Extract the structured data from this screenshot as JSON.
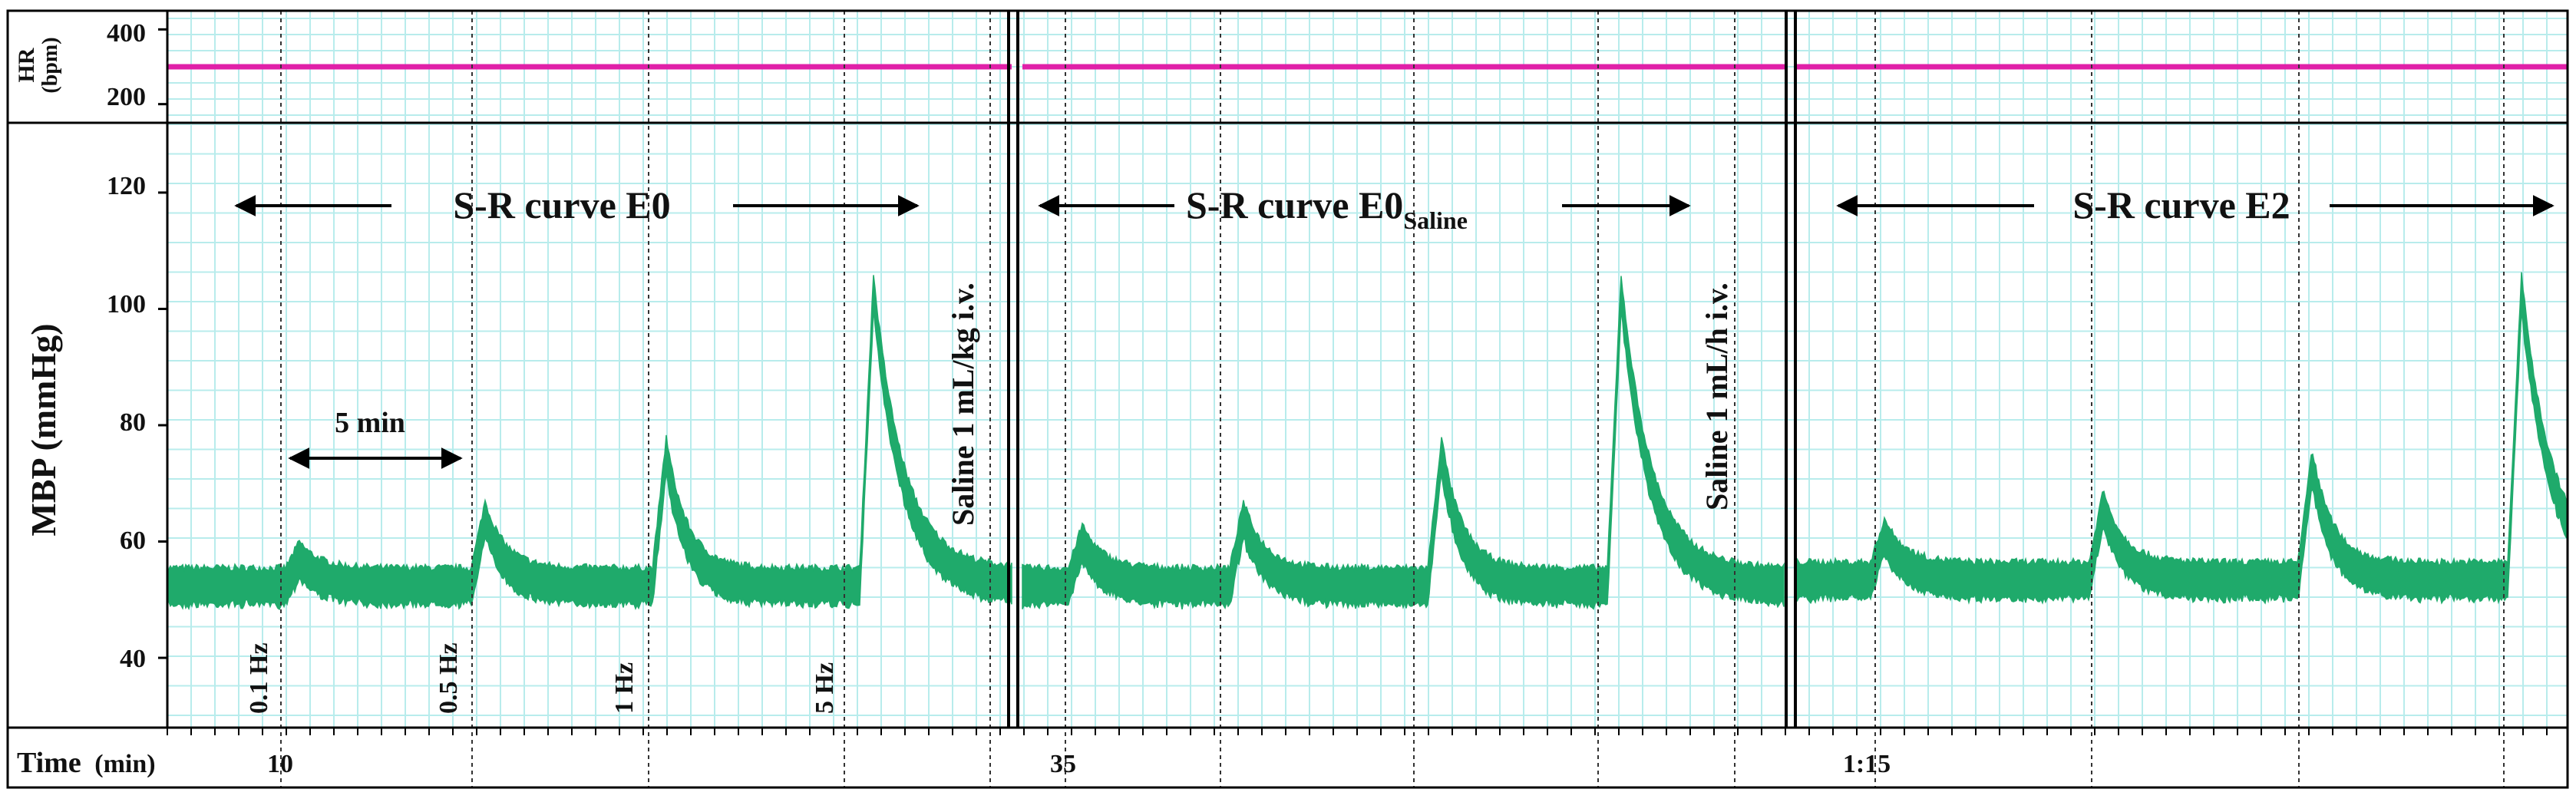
{
  "chart_data": {
    "type": "line",
    "hr_panel": {
      "ylabel_line1": "HR",
      "ylabel_line2": "(bpm)",
      "ylim": [
        150,
        450
      ],
      "yticks": [
        "400",
        "200"
      ],
      "value": 300
    },
    "mbp_panel": {
      "ylabel": "MBP (mmHg)",
      "ylim": [
        28,
        132
      ],
      "yticks": [
        "120",
        "100",
        "80",
        "60",
        "40"
      ]
    },
    "time_axis": {
      "label": "Time",
      "unit": "(min)",
      "ticks": [
        "10",
        "35",
        "1:15"
      ]
    },
    "segments": [
      {
        "title_main": "S-R curve E0",
        "title_sub": "",
        "baseline": 52.5,
        "events": [
          {
            "label": "0.1 Hz",
            "peak": 57
          },
          {
            "label": "0.5 Hz",
            "peak": 64
          },
          {
            "label": "1 Hz",
            "peak": 75
          },
          {
            "label": "5 Hz",
            "peak": 103
          }
        ],
        "interval_label": "5 min",
        "treatment": "Saline 1 mL/kg i.v."
      },
      {
        "title_main": "S-R curve E0",
        "title_sub": "Saline",
        "baseline": 52.5,
        "events": [
          {
            "label": "",
            "peak": 60
          },
          {
            "label": "",
            "peak": 64
          },
          {
            "label": "",
            "peak": 75
          },
          {
            "label": "",
            "peak": 103
          }
        ],
        "treatment": "Saline 1 mL/h i.v."
      },
      {
        "title_main": "S-R curve E2",
        "title_sub": "",
        "baseline": 53.5,
        "events": [
          {
            "label": "",
            "peak": 61
          },
          {
            "label": "",
            "peak": 66
          },
          {
            "label": "",
            "peak": 73
          },
          {
            "label": "",
            "peak": 103
          }
        ],
        "treatment": ""
      }
    ],
    "colors": {
      "hr_trace": "#e020a8",
      "mbp_trace": "#1faa6b",
      "grid": "#b8ecec"
    },
    "grid": true
  }
}
